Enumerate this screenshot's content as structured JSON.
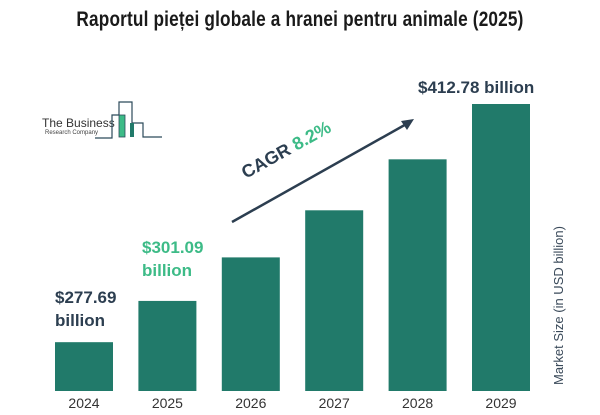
{
  "title": "Raportul pieței globale a hranei pentru animale (2025)",
  "logo": {
    "line1": "The Business",
    "line2": "Research Company"
  },
  "cagr": {
    "label": "CAGR",
    "value": "8.2%"
  },
  "annotations": {
    "v2024": {
      "amount": "$277.69",
      "unit": "billion"
    },
    "v2025": {
      "amount": "$301.09",
      "unit": "billion"
    },
    "v2029": "$412.78 billion"
  },
  "colors": {
    "bar": "#217a6a",
    "accent_green": "#3dbb87",
    "dark_text": "#2c3e50"
  },
  "chart_data": {
    "type": "bar",
    "title": "Raportul pieței globale a hranei pentru animale (2025)",
    "categories": [
      "2024",
      "2025",
      "2026",
      "2027",
      "2028",
      "2029"
    ],
    "values": [
      277.69,
      301.09,
      325.78,
      352.49,
      381.4,
      412.78
    ],
    "xlabel": "",
    "ylabel": "Market Size (in USD billion)",
    "ylim": [
      250,
      413
    ],
    "grid": false,
    "legend": "none"
  }
}
